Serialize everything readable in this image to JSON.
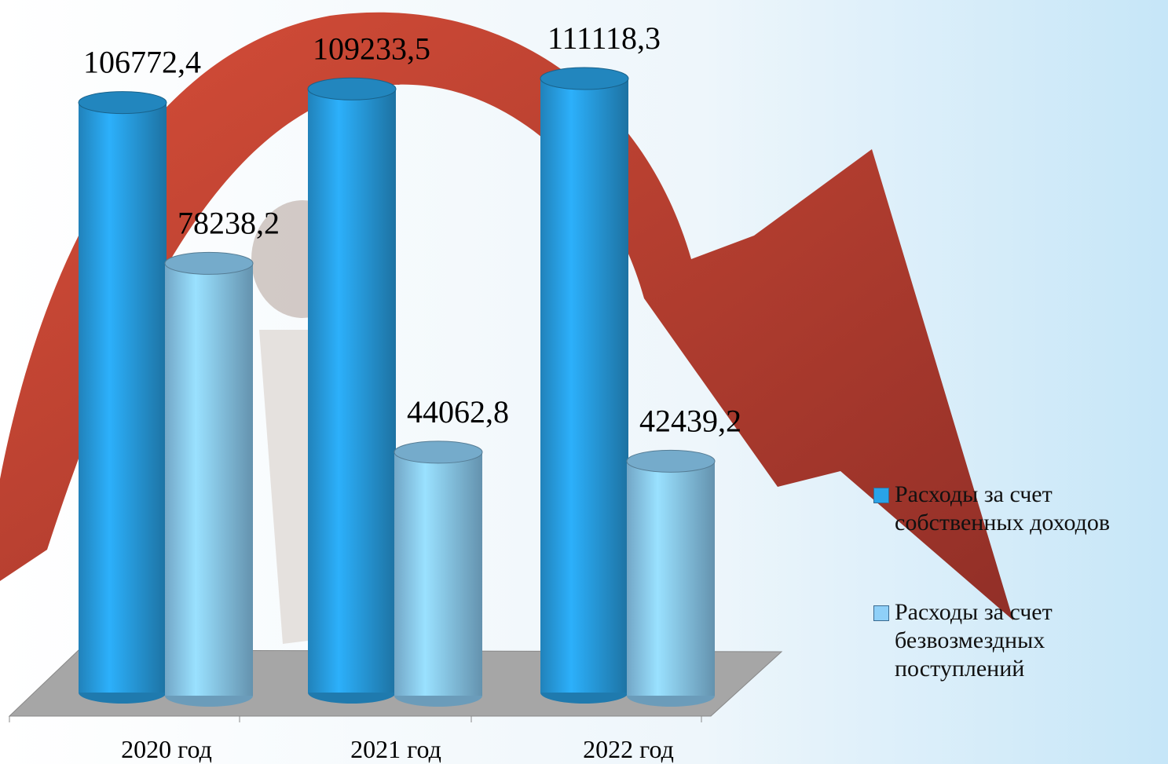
{
  "chart_data": {
    "type": "bar3d",
    "categories": [
      "2020 год",
      "2021 год",
      "2022 год"
    ],
    "series": [
      {
        "name": "Расходы за счет собственных доходов",
        "color": "#29a3e8",
        "values": [
          106772.4,
          109233.5,
          111118.3
        ],
        "value_labels": [
          "106772,4",
          "109233,5",
          "111118,3"
        ]
      },
      {
        "name": "Расходы за счет безвозмездных поступлений",
        "color": "#8fd0f8",
        "values": [
          78238.2,
          44062.8,
          42439.2
        ],
        "value_labels": [
          "78238,2",
          "44062,8",
          "42439,2"
        ]
      }
    ]
  }
}
